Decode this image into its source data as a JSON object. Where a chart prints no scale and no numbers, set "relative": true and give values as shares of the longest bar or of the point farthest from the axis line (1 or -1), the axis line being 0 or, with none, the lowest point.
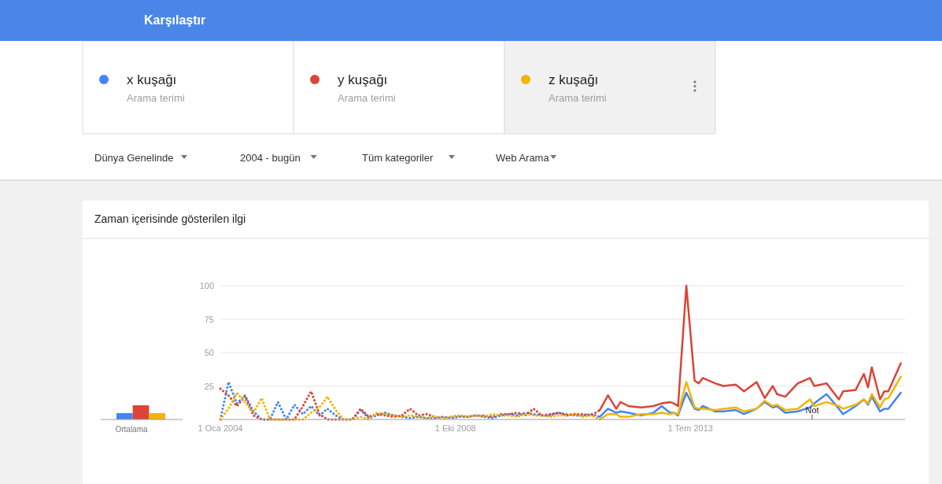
{
  "chart_data": [
    {
      "type": "other",
      "title": "Karşılaştır",
      "annotations": [
        "Arama terimi",
        "Arama terimi",
        "Arama terimi",
        "Dünya Genelinde",
        "2004 - bugün",
        "Tüm kategoriler",
        "Web Arama"
      ]
    },
    {
      "type": "bar",
      "relative": true,
      "xlabel": "Ortalama",
      "categories": [
        null,
        null,
        null
      ],
      "values": [
        0.45,
        1,
        0.45
      ],
      "colors": [
        "#4285f4",
        "#db4437",
        "#f4b400"
      ]
    },
    {
      "type": "line",
      "title": "Zaman içerisinde gösterilen ilgi",
      "legend": "top",
      "grid": "y",
      "line_style": "solid",
      "marker": "none",
      "xlim": [
        "2004-01",
        "2017-11"
      ],
      "xticks": [
        {
          "value": "2004-01-01",
          "label": "1 Oca 2004"
        },
        {
          "value": "2008-10-01",
          "label": "1 Eki 2008"
        },
        {
          "value": "2013-07-01",
          "label": "1 Tem 2013"
        }
      ],
      "ylim": [
        0,
        100
      ],
      "yticks": [
        25,
        50,
        75,
        100
      ],
      "annotations": [
        "Not"
      ],
      "series": [
        {
          "color": "#4285f4",
          "line_style": "dotted",
          "x": [
            "2004-01",
            "2004-03",
            "2004-05",
            "2004-07",
            "2004-09",
            "2004-11",
            "2005-01",
            "2005-03",
            "2005-05",
            "2005-07",
            "2005-09",
            "2005-11",
            "2006-01",
            "2006-03",
            "2006-05",
            "2006-07",
            "2006-09",
            "2006-11",
            "2007-01",
            "2007-03",
            "2007-05",
            "2007-07",
            "2007-09",
            "2007-11",
            "2008-01",
            "2008-03",
            "2008-05",
            "2008-07",
            "2008-09",
            "2008-11",
            "2009-01",
            "2009-03",
            "2009-05",
            "2009-07",
            "2009-09",
            "2009-11",
            "2010-01",
            "2010-03",
            "2010-05",
            "2010-07",
            "2010-09",
            "2010-11",
            "2011-01",
            "2011-03",
            "2011-05",
            "2011-07",
            "2011-09"
          ],
          "values": [
            0,
            28,
            12,
            18,
            6,
            0,
            0,
            13,
            0,
            11,
            4,
            10,
            3,
            8,
            3,
            0,
            0,
            7,
            1,
            3,
            5,
            3,
            2,
            1,
            2,
            1,
            1,
            2,
            1,
            2,
            2,
            3,
            2,
            1,
            3,
            4,
            3,
            5,
            4,
            3,
            3,
            5,
            4,
            3,
            3,
            4,
            2
          ]
        },
        {
          "color": "#db4437",
          "line_style": "dotted",
          "x": [
            "2004-01",
            "2004-03",
            "2004-05",
            "2004-07",
            "2004-09",
            "2004-11",
            "2005-01",
            "2005-03",
            "2005-05",
            "2005-07",
            "2005-09",
            "2005-11",
            "2006-01",
            "2006-03",
            "2006-05",
            "2006-07",
            "2006-09",
            "2006-11",
            "2007-01",
            "2007-03",
            "2007-05",
            "2007-07",
            "2007-09",
            "2007-11",
            "2008-01",
            "2008-03",
            "2008-05",
            "2008-07",
            "2008-09",
            "2008-11",
            "2009-01",
            "2009-03",
            "2009-05",
            "2009-07",
            "2009-09",
            "2009-11",
            "2010-01",
            "2010-03",
            "2010-05",
            "2010-07",
            "2010-09",
            "2010-11",
            "2011-01",
            "2011-03",
            "2011-05",
            "2011-07",
            "2011-09"
          ],
          "values": [
            23,
            18,
            10,
            17,
            3,
            0,
            0,
            0,
            0,
            0,
            10,
            21,
            4,
            0,
            0,
            0,
            0,
            8,
            2,
            4,
            3,
            2,
            3,
            8,
            3,
            4,
            2,
            1,
            2,
            3,
            2,
            3,
            3,
            2,
            4,
            4,
            5,
            3,
            8,
            3,
            4,
            5,
            3,
            4,
            4,
            3,
            7
          ]
        },
        {
          "color": "#f4b400",
          "line_style": "dotted",
          "x": [
            "2004-01",
            "2004-03",
            "2004-05",
            "2004-07",
            "2004-09",
            "2004-11",
            "2005-01",
            "2005-03",
            "2005-05",
            "2005-07",
            "2005-09",
            "2005-11",
            "2006-01",
            "2006-03",
            "2006-05",
            "2006-07",
            "2006-09",
            "2006-11",
            "2007-01",
            "2007-03",
            "2007-05",
            "2007-07",
            "2007-09",
            "2007-11",
            "2008-01",
            "2008-03",
            "2008-05",
            "2008-07",
            "2008-09",
            "2008-11",
            "2009-01",
            "2009-03",
            "2009-05",
            "2009-07",
            "2009-09",
            "2009-11",
            "2010-01",
            "2010-03",
            "2010-05",
            "2010-07",
            "2010-09",
            "2010-11",
            "2011-01",
            "2011-03",
            "2011-05",
            "2011-07",
            "2011-09"
          ],
          "values": [
            0,
            8,
            20,
            13,
            5,
            16,
            0,
            0,
            0,
            0,
            0,
            5,
            9,
            17,
            7,
            0,
            0,
            2,
            0,
            5,
            4,
            3,
            2,
            3,
            2,
            1,
            2,
            1,
            2,
            3,
            2,
            3,
            2,
            4,
            3,
            3,
            2,
            4,
            3,
            3,
            2,
            3,
            3,
            4,
            2,
            3,
            0
          ]
        },
        {
          "name": "x kuşağı",
          "color": "#4285f4",
          "x": [
            "2011-09",
            "2011-11",
            "2012-01",
            "2012-02",
            "2012-04",
            "2012-07",
            "2012-10",
            "2012-12",
            "2013-02",
            "2013-03",
            "2013-04",
            "2013-06",
            "2013-08",
            "2013-09",
            "2013-10",
            "2014-01",
            "2014-03",
            "2014-06",
            "2014-08",
            "2014-11",
            "2015-01",
            "2015-03",
            "2015-04",
            "2015-06",
            "2015-09",
            "2015-12",
            "2016-01",
            "2016-04",
            "2016-07",
            "2016-08",
            "2016-11",
            "2017-01",
            "2017-02",
            "2017-03",
            "2017-05",
            "2017-06",
            "2017-07",
            "2017-10"
          ],
          "values": [
            2,
            8,
            5,
            6,
            5,
            3,
            5,
            10,
            5,
            5,
            3,
            20,
            8,
            7,
            10,
            6,
            6,
            7,
            4,
            8,
            13,
            9,
            10,
            5,
            6,
            9,
            12,
            19,
            8,
            4,
            10,
            15,
            11,
            17,
            6,
            8,
            8,
            20
          ]
        },
        {
          "name": "y kuşağı",
          "color": "#db4437",
          "x": [
            "2011-09",
            "2011-11",
            "2012-01",
            "2012-02",
            "2012-04",
            "2012-07",
            "2012-10",
            "2012-12",
            "2013-02",
            "2013-03",
            "2013-04",
            "2013-06",
            "2013-08",
            "2013-09",
            "2013-10",
            "2014-01",
            "2014-03",
            "2014-06",
            "2014-08",
            "2014-11",
            "2015-01",
            "2015-03",
            "2015-04",
            "2015-06",
            "2015-09",
            "2015-12",
            "2016-01",
            "2016-04",
            "2016-07",
            "2016-08",
            "2016-11",
            "2017-01",
            "2017-02",
            "2017-03",
            "2017-05",
            "2017-06",
            "2017-07",
            "2017-10"
          ],
          "values": [
            7,
            18,
            8,
            13,
            10,
            9,
            10,
            12,
            13,
            12,
            10,
            100,
            29,
            27,
            31,
            27,
            25,
            26,
            21,
            28,
            16,
            25,
            19,
            17,
            27,
            31,
            25,
            27,
            15,
            21,
            22,
            34,
            24,
            39,
            15,
            21,
            21,
            42
          ]
        },
        {
          "name": "z kuşağı",
          "color": "#f4b400",
          "x": [
            "2011-09",
            "2011-11",
            "2012-01",
            "2012-02",
            "2012-04",
            "2012-07",
            "2012-10",
            "2012-12",
            "2013-02",
            "2013-03",
            "2013-04",
            "2013-06",
            "2013-08",
            "2013-09",
            "2013-10",
            "2014-01",
            "2014-03",
            "2014-06",
            "2014-08",
            "2014-11",
            "2015-01",
            "2015-03",
            "2015-04",
            "2015-06",
            "2015-09",
            "2015-12",
            "2016-01",
            "2016-04",
            "2016-07",
            "2016-08",
            "2016-11",
            "2017-01",
            "2017-02",
            "2017-03",
            "2017-05",
            "2017-06",
            "2017-07",
            "2017-10"
          ],
          "values": [
            0,
            4,
            4,
            2,
            2,
            4,
            4,
            5,
            4,
            5,
            4,
            28,
            9,
            8,
            8,
            7,
            8,
            9,
            6,
            8,
            14,
            10,
            11,
            7,
            8,
            15,
            10,
            13,
            10,
            8,
            11,
            15,
            12,
            19,
            9,
            15,
            16,
            32
          ]
        }
      ]
    }
  ]
}
